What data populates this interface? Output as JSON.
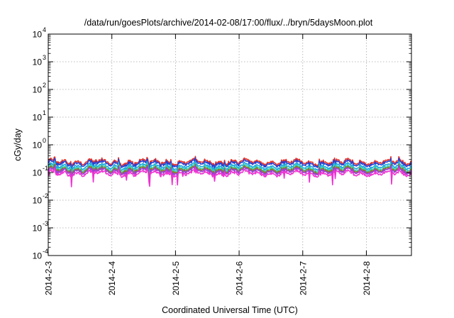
{
  "chart_data": {
    "type": "line",
    "title": "/data/run/goesPlots/archive/2014-02-08/17:00/flux/../bryn/5daysMoon.plot",
    "xlabel": "Coordinated Universal Time (UTC)",
    "ylabel": "cGy/day",
    "x_tick_labels": [
      "2014-2-3",
      "2014-2-4",
      "2014-2-5",
      "2014-2-6",
      "2014-2-7",
      "2014-2-8"
    ],
    "x_range": [
      "2014-02-03 00:00",
      "2014-02-08 17:00"
    ],
    "y_scale": "log",
    "ylim": [
      0.0001,
      10000
    ],
    "y_ticks": [
      {
        "base": "10",
        "exp": "-4"
      },
      {
        "base": "10",
        "exp": "-3"
      },
      {
        "base": "10",
        "exp": "-2"
      },
      {
        "base": "10",
        "exp": "-1"
      },
      {
        "base": "10",
        "exp": "0"
      },
      {
        "base": "10",
        "exp": "1"
      },
      {
        "base": "10",
        "exp": "2"
      },
      {
        "base": "10",
        "exp": "3"
      },
      {
        "base": "10",
        "exp": "4"
      }
    ],
    "grid": true,
    "series": [
      {
        "color": "#e8352b",
        "baseline": 0.24
      },
      {
        "color": "#2a3fd1",
        "baseline": 0.21
      },
      {
        "color": "#1fa9e0",
        "baseline": 0.165
      },
      {
        "color": "#38d3b8",
        "baseline": 0.14
      },
      {
        "color": "#8a7d1d",
        "baseline": 0.125
      },
      {
        "color": "#9b3fd6",
        "baseline": 0.112
      },
      {
        "color": "#f033d2",
        "baseline": 0.092
      }
    ]
  }
}
